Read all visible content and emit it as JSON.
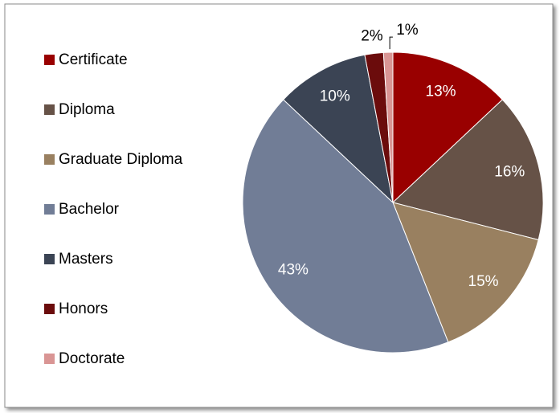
{
  "chart_data": {
    "type": "pie",
    "categories": [
      "Certificate",
      "Diploma",
      "Graduate Diploma",
      "Bachelor",
      "Masters",
      "Honors",
      "Doctorate"
    ],
    "values": [
      13,
      16,
      15,
      43,
      10,
      2,
      1
    ],
    "value_labels": [
      "13%",
      "16%",
      "15%",
      "43%",
      "10%",
      "2%",
      "1%"
    ],
    "colors": [
      "#990000",
      "#665247",
      "#998060",
      "#717d96",
      "#3b4454",
      "#6b0c0c",
      "#d99594"
    ],
    "legend": "left"
  }
}
